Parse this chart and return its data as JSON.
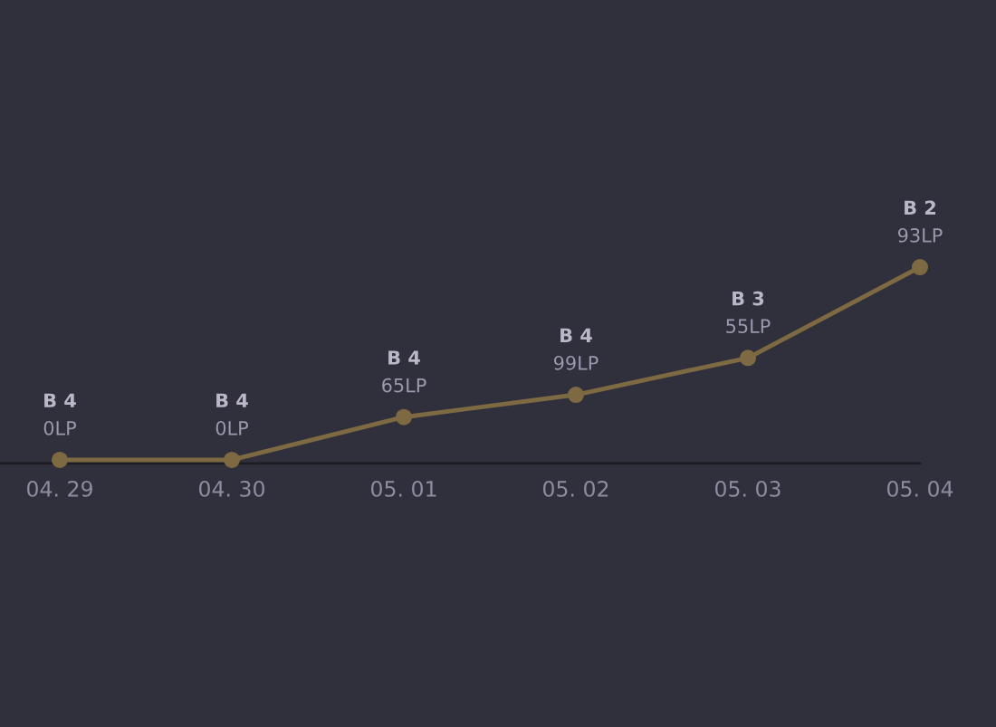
{
  "chart_data": {
    "type": "line",
    "categories": [
      "04. 29",
      "04. 30",
      "05. 01",
      "05. 02",
      "05. 03",
      "05. 04"
    ],
    "ylim": [
      -406,
      699
    ],
    "tick_labels": "x",
    "series": [
      {
        "color": "#7d6a42",
        "values": [
          0,
          0,
          65,
          99,
          155,
          293
        ],
        "value_labels": [
          "B 4\n0LP",
          "B 4\n0LP",
          "B 4\n65LP",
          "B 4\n99LP",
          "B 3\n55LP",
          "B 2\n93LP"
        ]
      }
    ],
    "marker": "circle",
    "line_style": "solid",
    "legend": false
  }
}
